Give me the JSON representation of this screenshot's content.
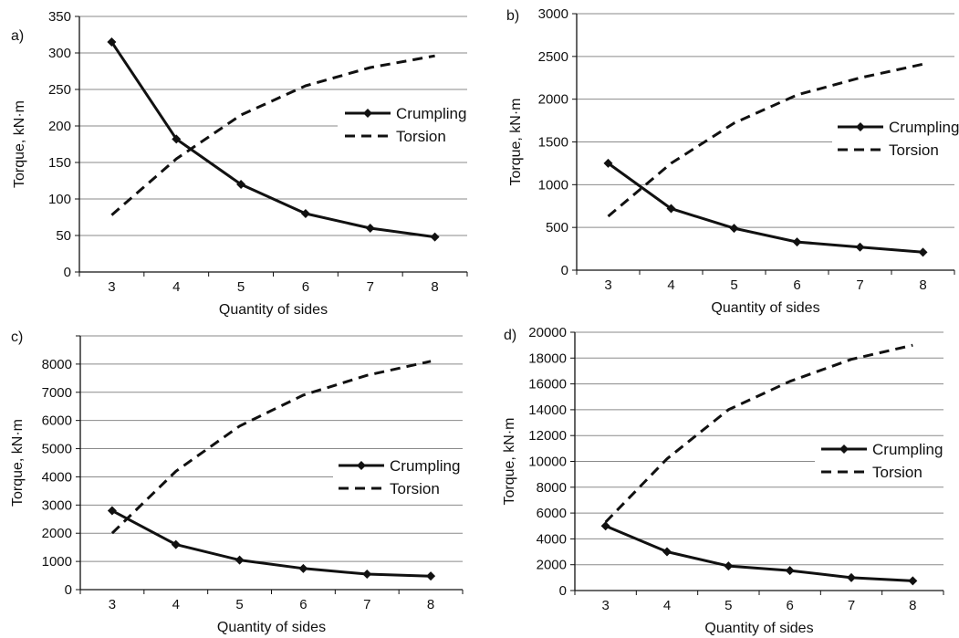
{
  "chart_data": [
    {
      "panel_label": "a)",
      "type": "line",
      "xlabel": "Quantity of sides",
      "ylabel": "Torque, kN·m",
      "x": [
        3,
        4,
        5,
        6,
        7,
        8
      ],
      "ylim": [
        0,
        350
      ],
      "yticks": [
        0,
        50,
        100,
        150,
        200,
        250,
        300,
        350
      ],
      "grid": true,
      "legend_position": "right",
      "series": [
        {
          "name": "Crumpling",
          "style": "solid-markers",
          "values": [
            315,
            182,
            120,
            80,
            60,
            48
          ]
        },
        {
          "name": "Torsion",
          "style": "dashed",
          "values": [
            78,
            155,
            215,
            255,
            280,
            296
          ]
        }
      ]
    },
    {
      "panel_label": "b)",
      "type": "line",
      "xlabel": "Quantity of sides",
      "ylabel": "Torque, kN·m",
      "x": [
        3,
        4,
        5,
        6,
        7,
        8
      ],
      "ylim": [
        0,
        3000
      ],
      "yticks": [
        0,
        500,
        1000,
        1500,
        2000,
        2500,
        3000
      ],
      "grid": true,
      "legend_position": "right",
      "series": [
        {
          "name": "Crumpling",
          "style": "solid-markers",
          "values": [
            1250,
            720,
            490,
            330,
            270,
            210
          ]
        },
        {
          "name": "Torsion",
          "style": "dashed",
          "values": [
            630,
            1250,
            1720,
            2050,
            2250,
            2410
          ]
        }
      ]
    },
    {
      "panel_label": "c)",
      "type": "line",
      "xlabel": "Quantity of sides",
      "ylabel": "Torque, kN·m",
      "x": [
        3,
        4,
        5,
        6,
        7,
        8
      ],
      "ylim": [
        0,
        9000
      ],
      "yticks": [
        0,
        1000,
        2000,
        3000,
        4000,
        5000,
        6000,
        7000,
        8000
      ],
      "grid": true,
      "legend_position": "right",
      "series": [
        {
          "name": "Crumpling",
          "style": "solid-markers",
          "values": [
            2800,
            1600,
            1050,
            750,
            550,
            480
          ]
        },
        {
          "name": "Torsion",
          "style": "dashed",
          "values": [
            2000,
            4200,
            5800,
            6900,
            7600,
            8100
          ]
        }
      ]
    },
    {
      "panel_label": "d)",
      "type": "line",
      "xlabel": "Quantity of sides",
      "ylabel": "Torque, kN·m",
      "x": [
        3,
        4,
        5,
        6,
        7,
        8
      ],
      "ylim": [
        0,
        20000
      ],
      "yticks": [
        0,
        2000,
        4000,
        6000,
        8000,
        10000,
        12000,
        14000,
        16000,
        18000,
        20000
      ],
      "grid": true,
      "legend_position": "right",
      "series": [
        {
          "name": "Crumpling",
          "style": "solid-markers",
          "values": [
            5000,
            3000,
            1900,
            1550,
            1000,
            750
          ]
        },
        {
          "name": "Torsion",
          "style": "dashed",
          "values": [
            5300,
            10200,
            14000,
            16200,
            17900,
            19000
          ]
        }
      ]
    }
  ]
}
